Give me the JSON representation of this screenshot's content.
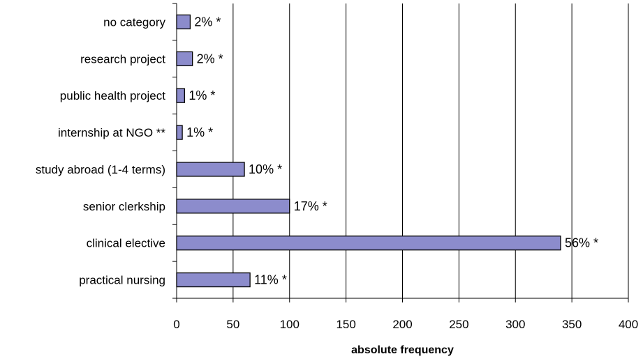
{
  "chart_data": {
    "type": "bar",
    "orientation": "horizontal",
    "title": "",
    "xlabel": "absolute frequency",
    "ylabel": "",
    "xlim": [
      0,
      400
    ],
    "xticks": [
      0,
      50,
      100,
      150,
      200,
      250,
      300,
      350,
      400
    ],
    "grid": "vertical gridlines",
    "bar_color": "#8c8ccc",
    "categories": [
      "no category",
      "research project",
      "public health project",
      "internship at NGO **",
      "study abroad (1-4 terms)",
      "senior clerkship",
      "clinical elective",
      "practical nursing"
    ],
    "values": [
      12,
      14,
      7,
      5,
      60,
      100,
      340,
      65
    ],
    "data_labels": [
      "2% *",
      "2% *",
      "1% *",
      "1% *",
      "10% *",
      "17% *",
      "56% *",
      "11% *"
    ]
  }
}
